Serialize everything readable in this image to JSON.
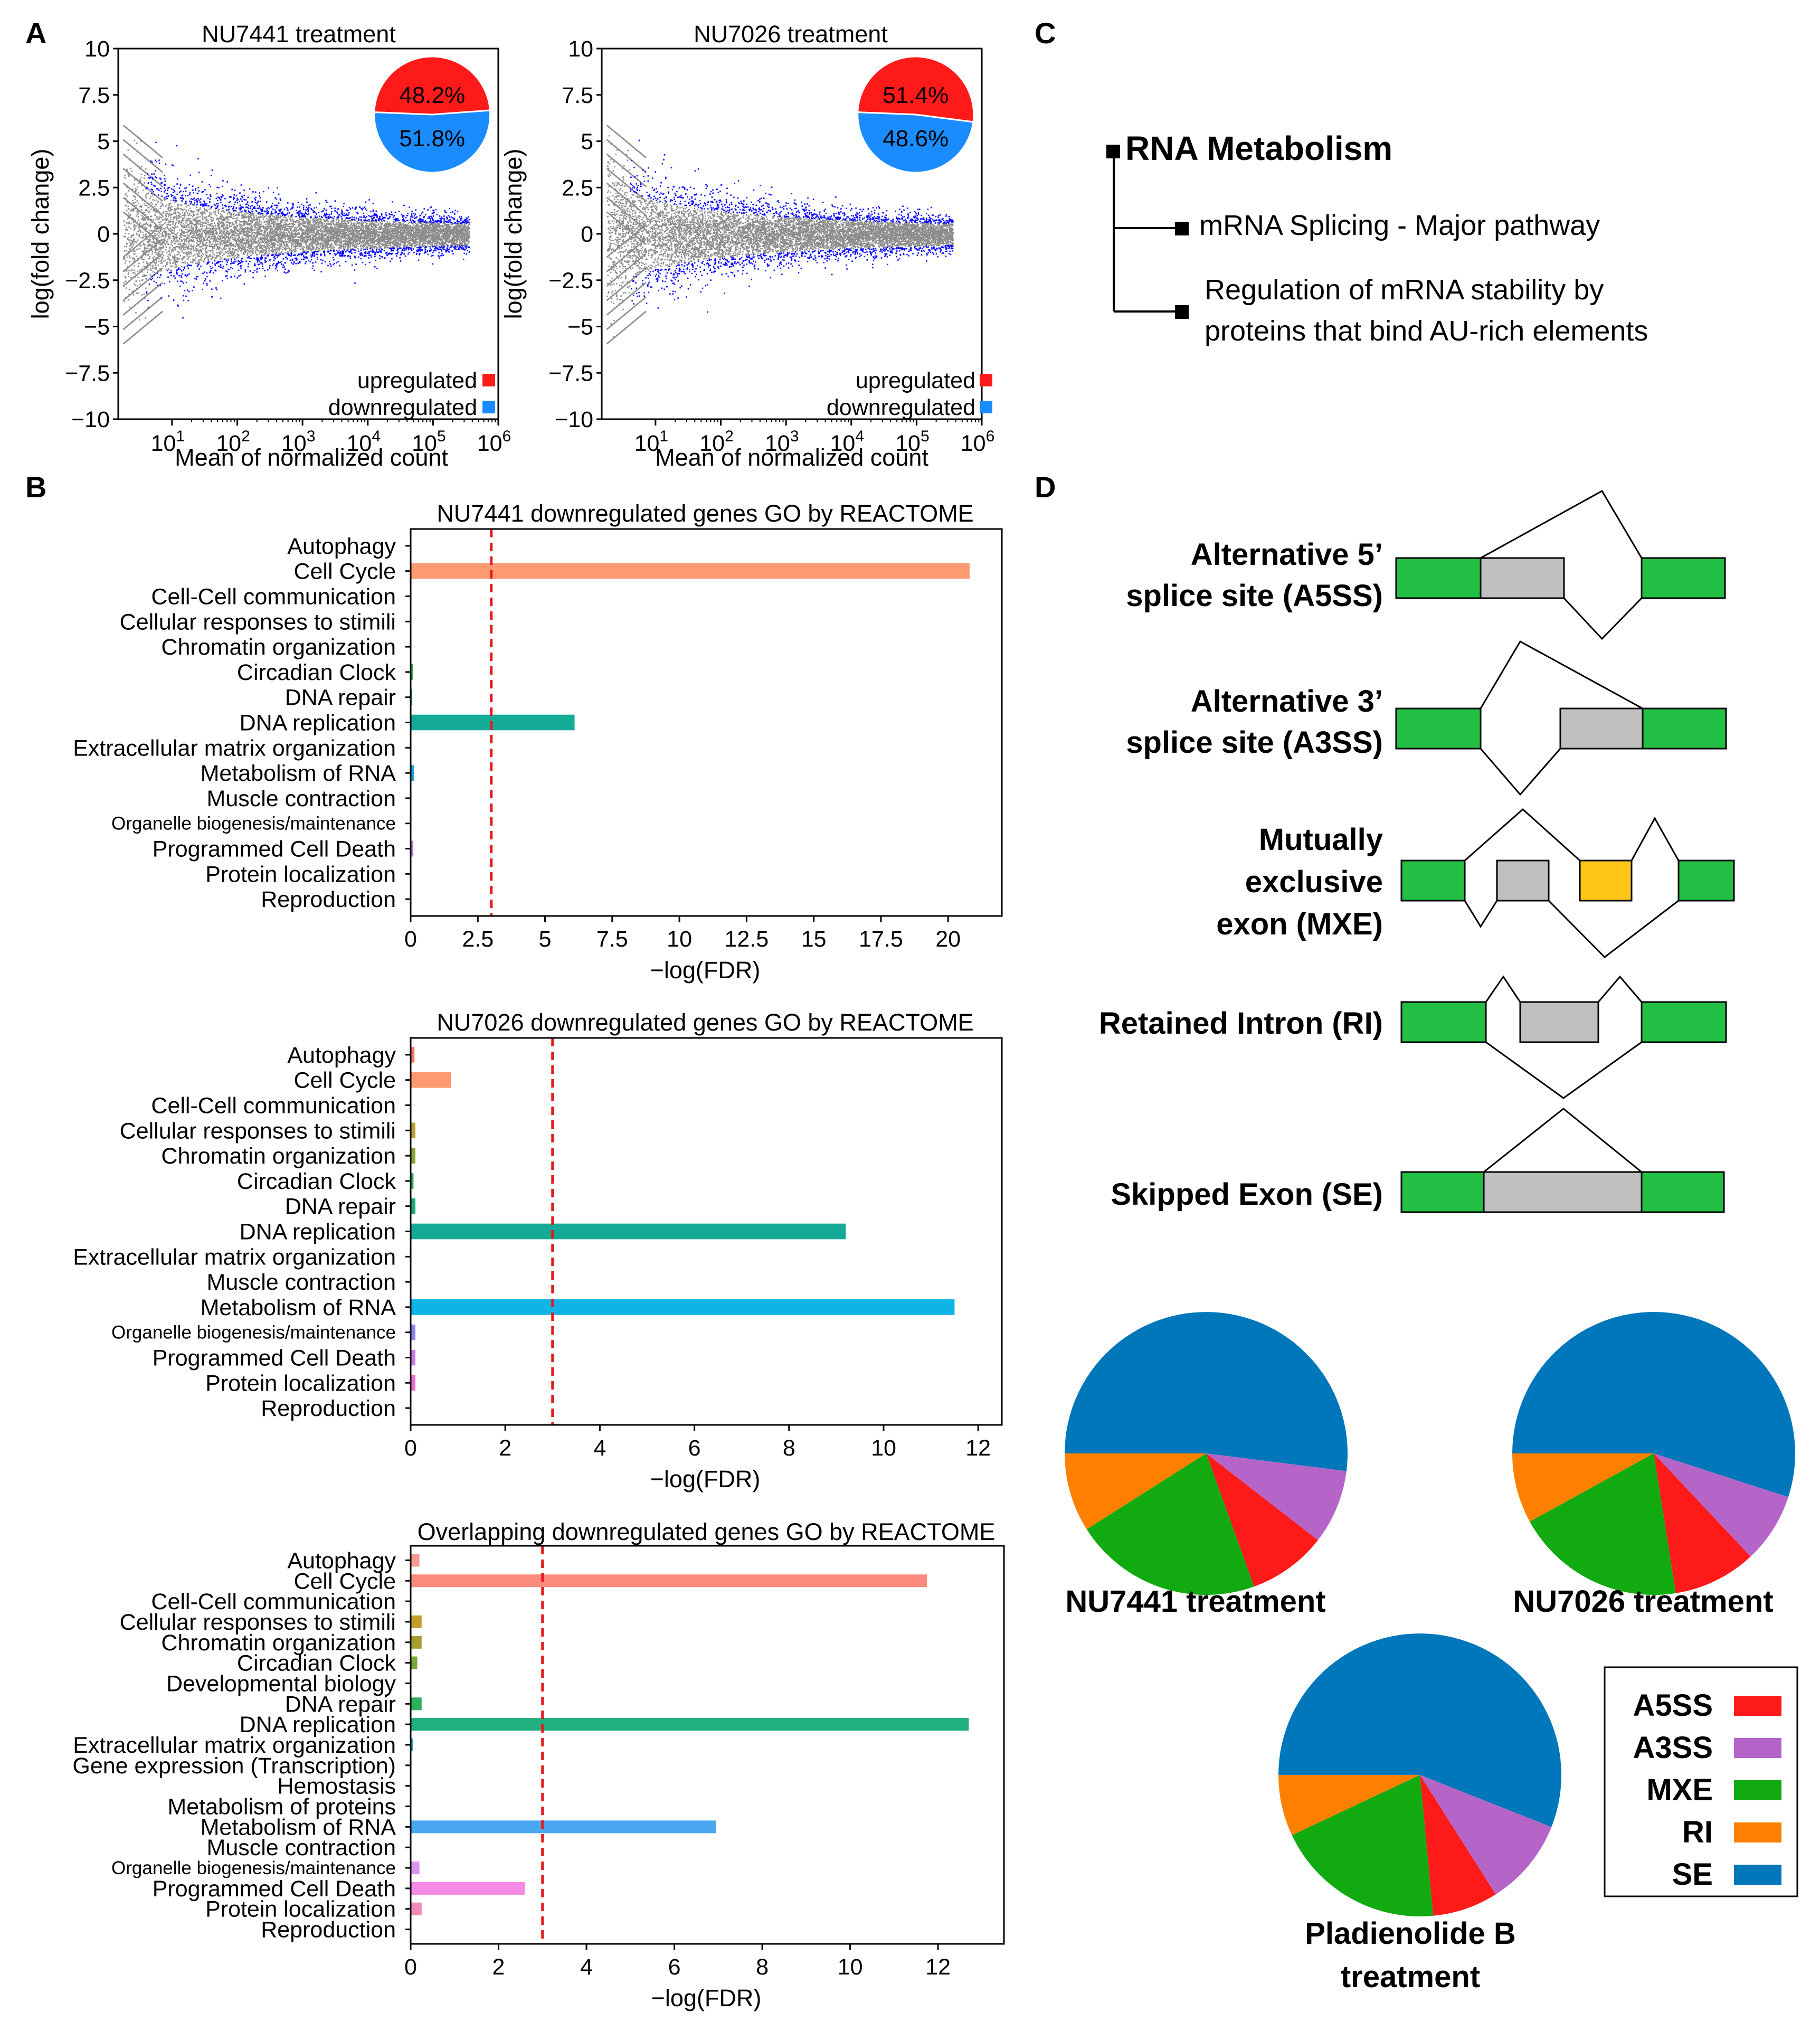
{
  "panels": {
    "a": "A",
    "b": "B",
    "c": "C",
    "d": "D"
  },
  "colors": {
    "upregulated": "#ff1a1a",
    "downregulated": "#1a8cff",
    "scatter_grey": "#8c8c8c",
    "scatter_blue": "#0000ff",
    "threshold_line": "#e31a1c",
    "exon": "#22bf44",
    "alt_exon": "#c0c0c0",
    "mxe_exon": "#ffc61a",
    "A5SS": "#ff1a1a",
    "A3SS": "#b565c8",
    "MXE": "#11aa11",
    "RI": "#ff8000",
    "SE": "#0077bb"
  },
  "ma_legend": {
    "up": "upregulated",
    "down": "downregulated"
  },
  "chart_data": [
    {
      "type": "scatter",
      "title": "NU7441 treatment",
      "xlabel": "Mean of normalized count",
      "ylabel": "log(fold change)",
      "x_scale": "log",
      "xticks": [
        {
          "b": "10",
          "e": "1"
        },
        {
          "b": "10",
          "e": "2"
        },
        {
          "b": "10",
          "e": "3"
        },
        {
          "b": "10",
          "e": "4"
        },
        {
          "b": "10",
          "e": "5"
        },
        {
          "b": "10",
          "e": "6"
        }
      ],
      "yticks": [
        "10",
        "7.5",
        "5",
        "2.5",
        "0",
        "−2.5",
        "−5",
        "−7.5",
        "−10"
      ],
      "ylim": [
        -10,
        10
      ],
      "xlim": [
        1.5,
        1000000
      ],
      "inset_pie": [
        {
          "label": "48.2%",
          "value": 48.2,
          "name": "upregulated"
        },
        {
          "label": "51.8%",
          "value": 51.8,
          "name": "downregulated"
        }
      ]
    },
    {
      "type": "scatter",
      "title": "NU7026 treatment",
      "xlabel": "Mean of normalized count",
      "ylabel": "log(fold change)",
      "x_scale": "log",
      "xticks": [
        {
          "b": "10",
          "e": "1"
        },
        {
          "b": "10",
          "e": "2"
        },
        {
          "b": "10",
          "e": "3"
        },
        {
          "b": "10",
          "e": "4"
        },
        {
          "b": "10",
          "e": "5"
        },
        {
          "b": "10",
          "e": "6"
        }
      ],
      "yticks": [
        "10",
        "7.5",
        "5",
        "2.5",
        "0",
        "−2.5",
        "−5",
        "−7.5",
        "−10"
      ],
      "ylim": [
        -10,
        10
      ],
      "xlim": [
        1.5,
        1000000
      ],
      "inset_pie": [
        {
          "label": "51.4%",
          "value": 51.4,
          "name": "upregulated"
        },
        {
          "label": "48.6%",
          "value": 48.6,
          "name": "downregulated"
        }
      ]
    },
    {
      "type": "bar",
      "orientation": "horizontal",
      "title": "NU7441 downregulated genes GO by REACTOME",
      "xlabel": "−log(FDR)",
      "xlim": [
        0,
        22
      ],
      "threshold": 3,
      "xticks": [
        {
          "v": 0,
          "l": "0"
        },
        {
          "v": 2.5,
          "l": "2.5"
        },
        {
          "v": 5,
          "l": "5"
        },
        {
          "v": 7.5,
          "l": "7.5"
        },
        {
          "v": 10,
          "l": "10"
        },
        {
          "v": 12.5,
          "l": "12.5"
        },
        {
          "v": 15,
          "l": "15"
        },
        {
          "v": 17.5,
          "l": "17.5"
        },
        {
          "v": 20,
          "l": "20"
        }
      ],
      "bars": [
        {
          "label": "Autophagy",
          "value": 0,
          "color": "#f2776a"
        },
        {
          "label": "Cell Cycle",
          "value": 20.8,
          "color": "#fd9a72"
        },
        {
          "label": "Cell-Cell communication",
          "value": 0,
          "color": "#d99a30"
        },
        {
          "label": "Cellular responses to stimili",
          "value": 0,
          "color": "#b5a032"
        },
        {
          "label": "Chromatin organization",
          "value": 0,
          "color": "#86a532"
        },
        {
          "label": "Circadian Clock",
          "value": 0.08,
          "color": "#2cae54"
        },
        {
          "label": "DNA repair",
          "value": 0.06,
          "color": "#1cab7a"
        },
        {
          "label": "DNA replication",
          "value": 6.1,
          "color": "#13ab96"
        },
        {
          "label": "Extracellular matrix organization",
          "value": 0,
          "color": "#19a9b3"
        },
        {
          "label": "Metabolism of RNA",
          "value": 0.12,
          "color": "#22a3d6"
        },
        {
          "label": "Muscle contraction",
          "value": 0,
          "color": "#4a95e8"
        },
        {
          "label": "Organelle biogenesis/maintenance",
          "value": 0,
          "color": "#8a84ea",
          "small": true
        },
        {
          "label": "Programmed Cell Death",
          "value": 0.1,
          "color": "#c77ae8"
        },
        {
          "label": "Protein localization",
          "value": 0,
          "color": "#ea6fcf"
        },
        {
          "label": "Reproduction",
          "value": 0,
          "color": "#f06b9c"
        }
      ]
    },
    {
      "type": "bar",
      "orientation": "horizontal",
      "title": "NU7026 downregulated genes GO by REACTOME",
      "xlabel": "−log(FDR)",
      "xlim": [
        0,
        12.5
      ],
      "threshold": 3,
      "xticks": [
        {
          "v": 0,
          "l": "0"
        },
        {
          "v": 2,
          "l": "2"
        },
        {
          "v": 4,
          "l": "4"
        },
        {
          "v": 6,
          "l": "6"
        },
        {
          "v": 8,
          "l": "8"
        },
        {
          "v": 10,
          "l": "10"
        },
        {
          "v": 12,
          "l": "12"
        }
      ],
      "bars": [
        {
          "label": "Autophagy",
          "value": 0.08,
          "color": "#f2776a"
        },
        {
          "label": "Cell Cycle",
          "value": 0.85,
          "color": "#fd9a72"
        },
        {
          "label": "Cell-Cell communication",
          "value": 0,
          "color": "#d99a30"
        },
        {
          "label": "Cellular responses to stimili",
          "value": 0.1,
          "color": "#b5a032"
        },
        {
          "label": "Chromatin organization",
          "value": 0.1,
          "color": "#86a532"
        },
        {
          "label": "Circadian Clock",
          "value": 0.06,
          "color": "#2cae54"
        },
        {
          "label": "DNA repair",
          "value": 0.1,
          "color": "#1cab7a"
        },
        {
          "label": "DNA replication",
          "value": 9.2,
          "color": "#13ab96"
        },
        {
          "label": "Extracellular matrix organization",
          "value": 0,
          "color": "#19a9b3"
        },
        {
          "label": "Muscle contraction",
          "value": 0,
          "color": "#4a95e8"
        },
        {
          "label": "Metabolism of RNA",
          "value": 11.5,
          "color": "#0fb4e6"
        },
        {
          "label": "Organelle biogenesis/maintenance",
          "value": 0.1,
          "color": "#8a84ea",
          "small": true
        },
        {
          "label": "Programmed Cell Death",
          "value": 0.1,
          "color": "#c77ae8"
        },
        {
          "label": "Protein localization",
          "value": 0.1,
          "color": "#ea6fcf"
        },
        {
          "label": "Reproduction",
          "value": 0,
          "color": "#f06b9c"
        }
      ]
    },
    {
      "type": "bar",
      "orientation": "horizontal",
      "title": "Overlapping downregulated genes GO by REACTOME",
      "xlabel": "−log(FDR)",
      "xlim": [
        0,
        13.5
      ],
      "threshold": 3,
      "xticks": [
        {
          "v": 0,
          "l": "0"
        },
        {
          "v": 2,
          "l": "2"
        },
        {
          "v": 4,
          "l": "4"
        },
        {
          "v": 6,
          "l": "6"
        },
        {
          "v": 8,
          "l": "8"
        },
        {
          "v": 10,
          "l": "10"
        },
        {
          "v": 12,
          "l": "12"
        }
      ],
      "bars": [
        {
          "label": "Autophagy",
          "value": 0.2,
          "color": "#f79a94"
        },
        {
          "label": "Cell Cycle",
          "value": 11.75,
          "color": "#fa8a7c"
        },
        {
          "label": "Cell-Cell communication",
          "value": 0,
          "color": "#d99a30"
        },
        {
          "label": "Cellular responses to stimili",
          "value": 0.25,
          "color": "#c2a030"
        },
        {
          "label": "Chromatin organization",
          "value": 0.25,
          "color": "#a3a030"
        },
        {
          "label": "Circadian Clock",
          "value": 0.15,
          "color": "#7aa83a"
        },
        {
          "label": "Developmental biology",
          "value": 0,
          "color": "#3caf4a"
        },
        {
          "label": "DNA repair",
          "value": 0.25,
          "color": "#2db05e"
        },
        {
          "label": "DNA replication",
          "value": 12.7,
          "color": "#20b07e"
        },
        {
          "label": "Extracellular matrix organization",
          "value": 0.05,
          "color": "#19a9b3"
        },
        {
          "label": "Gene expression (Transcription)",
          "value": 0,
          "color": "#1aa8c2"
        },
        {
          "label": "Hemostasis",
          "value": 0,
          "color": "#22a3d6"
        },
        {
          "label": "Metabolism of proteins",
          "value": 0,
          "color": "#3a9ee6"
        },
        {
          "label": "Metabolism of RNA",
          "value": 6.95,
          "color": "#4aa8f0"
        },
        {
          "label": "Muscle contraction",
          "value": 0,
          "color": "#8a84ea"
        },
        {
          "label": "Organelle biogenesis/maintenance",
          "value": 0.2,
          "color": "#d896ea",
          "small": true
        },
        {
          "label": "Programmed Cell Death",
          "value": 2.6,
          "color": "#f68ae6"
        },
        {
          "label": "Protein localization",
          "value": 0.25,
          "color": "#f28ab8"
        },
        {
          "label": "Reproduction",
          "value": 0,
          "color": "#f06b9c"
        }
      ]
    },
    {
      "type": "pie",
      "title": "NU7441 treatment",
      "slices": [
        {
          "name": "SE",
          "value": 52.0
        },
        {
          "name": "A3SS",
          "value": 8.5
        },
        {
          "name": "A5SS",
          "value": 9.0
        },
        {
          "name": "MXE",
          "value": 21.5
        },
        {
          "name": "RI",
          "value": 9.0
        }
      ]
    },
    {
      "type": "pie",
      "title": "NU7026 treatment",
      "slices": [
        {
          "name": "SE",
          "value": 55.0
        },
        {
          "name": "A3SS",
          "value": 8.0
        },
        {
          "name": "A5SS",
          "value": 9.5
        },
        {
          "name": "MXE",
          "value": 19.5
        },
        {
          "name": "RI",
          "value": 8.0
        }
      ]
    },
    {
      "type": "pie",
      "title": "Pladienolide B treatment",
      "slices": [
        {
          "name": "SE",
          "value": 56.0
        },
        {
          "name": "A3SS",
          "value": 10.0
        },
        {
          "name": "A5SS",
          "value": 7.5
        },
        {
          "name": "MXE",
          "value": 19.5
        },
        {
          "name": "RI",
          "value": 7.0
        }
      ]
    }
  ],
  "panel_c": {
    "root": "RNA Metabolism",
    "child1": "mRNA Splicing - Major pathway",
    "child2_line1": "Regulation of mRNA stability by",
    "child2_line2": "proteins that bind AU-rich elements"
  },
  "panel_d": {
    "a5ss_l1": "Alternative 5’",
    "a5ss_l2": "splice site (A5SS)",
    "a3ss_l1": "Alternative 3’",
    "a3ss_l2": "splice site (A3SS)",
    "mxe_l1": "Mutually",
    "mxe_l2": "exclusive",
    "mxe_l3": "exon (MXE)",
    "ri": "Retained Intron (RI)",
    "se": "Skipped Exon (SE)",
    "pie1_label": "NU7441 treatment",
    "pie2_label": "NU7026 treatment",
    "pie3_l1": "Pladienolide B",
    "pie3_l2": "treatment",
    "legend": [
      "A5SS",
      "A3SS",
      "MXE",
      "RI",
      "SE"
    ]
  }
}
